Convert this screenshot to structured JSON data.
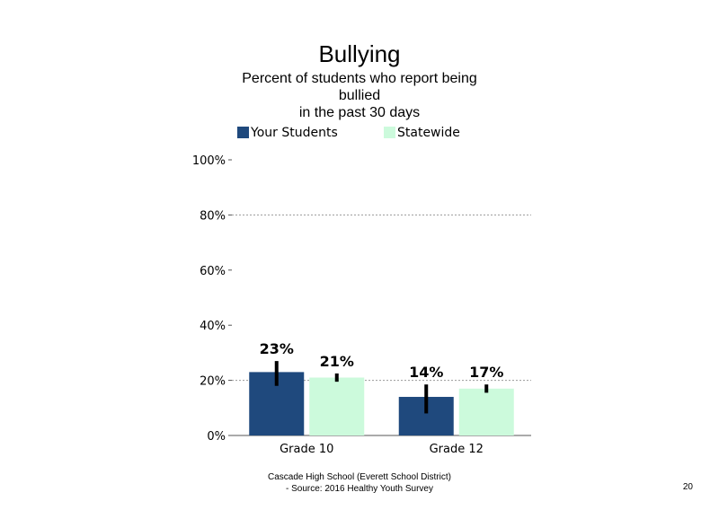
{
  "slide": {
    "title": "Bullying",
    "subtitle_lines": [
      "Percent of students  who report being",
      "bullied",
      "in the past 30 days"
    ],
    "footer_lines": [
      "Cascade High  School (Everett School District)",
      "- Source: 2016 Healthy  Youth Survey"
    ],
    "page_number": "20"
  },
  "chart_data": {
    "type": "bar",
    "title": "Bullying",
    "subtitle": "Percent of students  who report being bullied in the past 30 days",
    "categories": [
      "Grade 10",
      "Grade 12"
    ],
    "series": [
      {
        "name": "Your Students",
        "color": "#1f497d",
        "values": [
          23,
          14
        ],
        "labels": [
          "23%",
          "14%"
        ],
        "error_low": [
          18,
          8
        ],
        "error_high": [
          27,
          18.5
        ]
      },
      {
        "name": "Statewide",
        "color": "#ccfadc",
        "values": [
          21,
          17
        ],
        "labels": [
          "21%",
          "17%"
        ],
        "error_low": [
          19.5,
          15.5
        ],
        "error_high": [
          22.5,
          18.5
        ]
      }
    ],
    "ylim": [
      0,
      100
    ],
    "yticks": [
      0,
      20,
      40,
      60,
      80,
      100
    ],
    "ytick_labels": [
      "0%",
      "20%",
      "40%",
      "60%",
      "80%",
      "100%"
    ],
    "gridlines": [
      20,
      80
    ],
    "grid": "dotted",
    "legend_position": "top",
    "xlabel": "",
    "ylabel": ""
  }
}
